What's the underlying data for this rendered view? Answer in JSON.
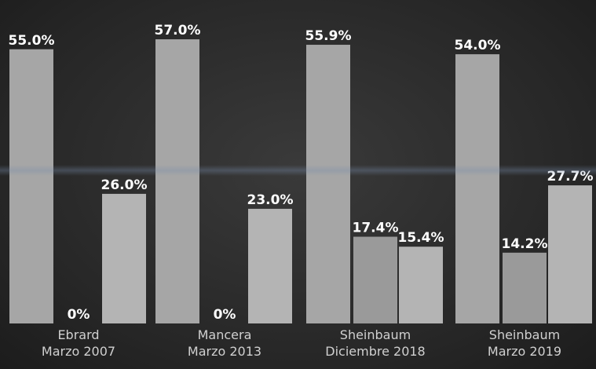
{
  "chart_data": {
    "type": "bar",
    "categories": [
      [
        "Ebrard",
        "Marzo 2007"
      ],
      [
        "Mancera",
        "Marzo 2013"
      ],
      [
        "Sheinbaum",
        "Diciembre 2018"
      ],
      [
        "Sheinbaum",
        "Marzo 2019"
      ]
    ],
    "series": [
      {
        "values": [
          55.0,
          57.0,
          55.9,
          54.0
        ],
        "labels": [
          "55.0%",
          "57.0%",
          "55.9%",
          "54.0%"
        ]
      },
      {
        "values": [
          0,
          0,
          17.4,
          14.2
        ],
        "labels": [
          "0%",
          "0%",
          "17.4%",
          "14.2%"
        ]
      },
      {
        "values": [
          26.0,
          23.0,
          15.4,
          27.7
        ],
        "labels": [
          "26.0%",
          "23.0%",
          "15.4%",
          "27.7%"
        ]
      }
    ],
    "ylim": [
      0,
      60
    ],
    "grid": false,
    "colors": {
      "bar_primary": "#a6a6a6",
      "bar_secondary": "#9a9a9a",
      "bar_tertiary": "#b4b4b4",
      "label": "#ffffff",
      "category_label": "#d0d0d0"
    }
  }
}
